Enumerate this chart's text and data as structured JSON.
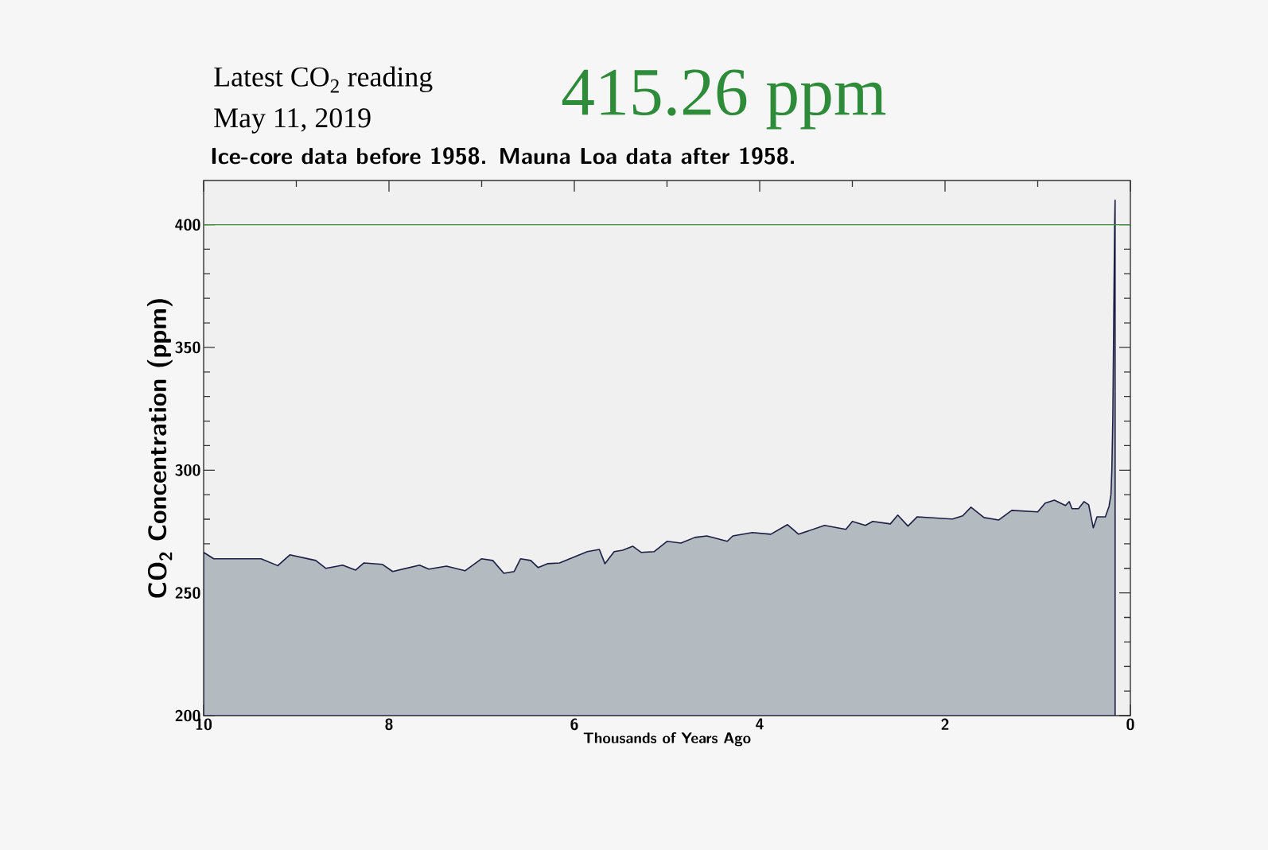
{
  "chart_data": {
    "type": "area",
    "title": "Latest CO$_{2}$ reading",
    "subtitle": "Ice-core data before 1958. Mauna Loa data after 1958.",
    "annotations": [
      "May 11, 2019",
      "415.26 ppm"
    ],
    "xlabel": "Thousands of Years Ago",
    "ylabel": "CO$_{2}$ Concentration (ppm)",
    "xlim": [
      10,
      0
    ],
    "ylim": [
      200,
      418
    ],
    "xticks": [
      10,
      8,
      6,
      4,
      2,
      0
    ],
    "yticks": [
      200,
      250,
      300,
      350,
      400
    ],
    "ref_lines": [
      {
        "axis": "y",
        "value": 400,
        "color": "#3a8a3a"
      }
    ],
    "series": [
      {
        "color": "#b4bbc0",
        "x": [
          10.0,
          9.89,
          9.38,
          9.2,
          9.07,
          8.79,
          8.68,
          8.5,
          8.36,
          8.27,
          8.07,
          7.96,
          7.67,
          7.57,
          7.38,
          7.18,
          7.0,
          6.88,
          6.76,
          6.65,
          6.58,
          6.47,
          6.39,
          6.29,
          6.16,
          5.86,
          5.73,
          5.67,
          5.57,
          5.48,
          5.37,
          5.28,
          5.14,
          5.0,
          4.85,
          4.7,
          4.57,
          4.35,
          4.29,
          4.08,
          3.88,
          3.7,
          3.58,
          3.3,
          3.07,
          3.0,
          2.86,
          2.78,
          2.59,
          2.51,
          2.4,
          2.3,
          1.92,
          1.81,
          1.72,
          1.58,
          1.42,
          1.28,
          1.0,
          0.92,
          0.82,
          0.7,
          0.66,
          0.63,
          0.56,
          0.5,
          0.45,
          0.4,
          0.36,
          0.27,
          0.23,
          0.21,
          0.2,
          0.19,
          0.185,
          0.18,
          0.175,
          0.17,
          0.165
        ],
        "values": [
          266.5,
          263.9,
          263.9,
          261.1,
          265.5,
          263.2,
          260.0,
          261.3,
          259.3,
          262.2,
          261.6,
          258.7,
          261.3,
          259.7,
          260.9,
          259.0,
          263.9,
          263.2,
          258.0,
          258.7,
          263.9,
          263.2,
          260.3,
          261.9,
          262.2,
          266.8,
          267.7,
          261.9,
          266.8,
          267.4,
          269.0,
          266.5,
          266.8,
          271.0,
          270.3,
          272.6,
          273.2,
          271.0,
          273.2,
          274.6,
          273.9,
          277.8,
          273.9,
          277.5,
          275.9,
          279.1,
          277.5,
          279.1,
          278.1,
          281.7,
          277.2,
          281.0,
          280.1,
          281.4,
          284.9,
          280.7,
          279.7,
          283.6,
          283.0,
          286.6,
          287.8,
          285.6,
          287.2,
          284.3,
          284.3,
          287.2,
          285.9,
          276.5,
          281.0,
          281.0,
          285.3,
          290,
          300,
          320,
          340,
          360,
          380,
          400,
          410
        ]
      }
    ]
  }
}
